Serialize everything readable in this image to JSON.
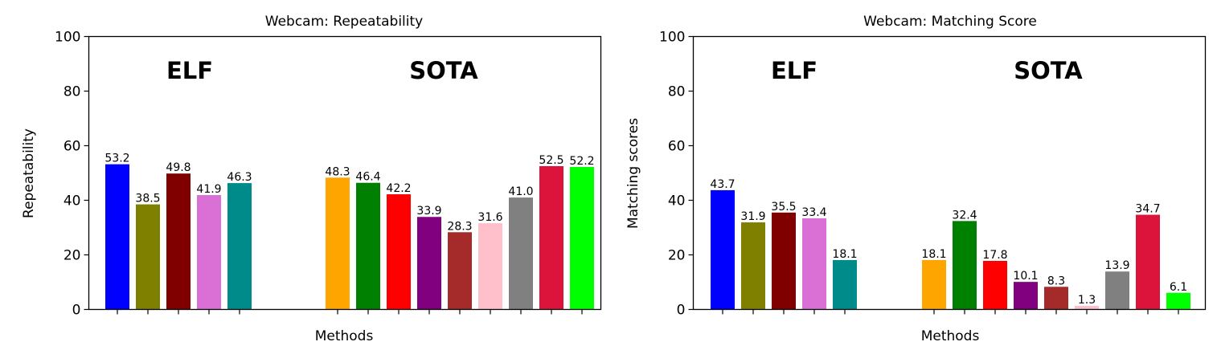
{
  "chart_data": [
    {
      "type": "bar",
      "title": "Webcam: Repeatability",
      "xlabel": "Methods",
      "ylabel": "Repeatability",
      "ylim": [
        0,
        100
      ],
      "yticks": [
        "0",
        "20",
        "40",
        "60",
        "80",
        "100"
      ],
      "grid": false,
      "group_labels": [
        "ELF",
        "SOTA"
      ],
      "groups": [
        {
          "label": "ELF",
          "values": [
            53.2,
            38.5,
            49.8,
            41.9,
            46.3
          ],
          "value_labels": [
            "53.2",
            "38.5",
            "49.8",
            "41.9",
            "46.3"
          ],
          "colors": [
            "#0000ff",
            "#808000",
            "#800000",
            "#da70d6",
            "#008b8b"
          ]
        },
        {
          "label": "SOTA",
          "values": [
            48.3,
            46.4,
            42.2,
            33.9,
            28.3,
            31.6,
            41.0,
            52.5,
            52.2
          ],
          "value_labels": [
            "48.3",
            "46.4",
            "42.2",
            "33.9",
            "28.3",
            "31.6",
            "41.0",
            "52.5",
            "52.2"
          ],
          "colors": [
            "#ffa500",
            "#008000",
            "#ff0000",
            "#800080",
            "#a52a2a",
            "#ffc0cb",
            "#808080",
            "#dc143c",
            "#00ff00"
          ]
        }
      ]
    },
    {
      "type": "bar",
      "title": "Webcam: Matching Score",
      "xlabel": "Methods",
      "ylabel": "Matching scores",
      "ylim": [
        0,
        100
      ],
      "yticks": [
        "0",
        "20",
        "40",
        "60",
        "80",
        "100"
      ],
      "grid": false,
      "group_labels": [
        "ELF",
        "SOTA"
      ],
      "groups": [
        {
          "label": "ELF",
          "values": [
            43.7,
            31.9,
            35.5,
            33.4,
            18.1
          ],
          "value_labels": [
            "43.7",
            "31.9",
            "35.5",
            "33.4",
            "18.1"
          ],
          "colors": [
            "#0000ff",
            "#808000",
            "#800000",
            "#da70d6",
            "#008b8b"
          ]
        },
        {
          "label": "SOTA",
          "values": [
            18.1,
            32.4,
            17.8,
            10.1,
            8.3,
            1.3,
            13.9,
            34.7,
            6.1
          ],
          "value_labels": [
            "18.1",
            "32.4",
            "17.8",
            "10.1",
            "8.3",
            "1.3",
            "13.9",
            "34.7",
            "6.1"
          ],
          "colors": [
            "#ffa500",
            "#008000",
            "#ff0000",
            "#800080",
            "#a52a2a",
            "#ffc0cb",
            "#808080",
            "#dc143c",
            "#00ff00"
          ]
        }
      ]
    }
  ]
}
